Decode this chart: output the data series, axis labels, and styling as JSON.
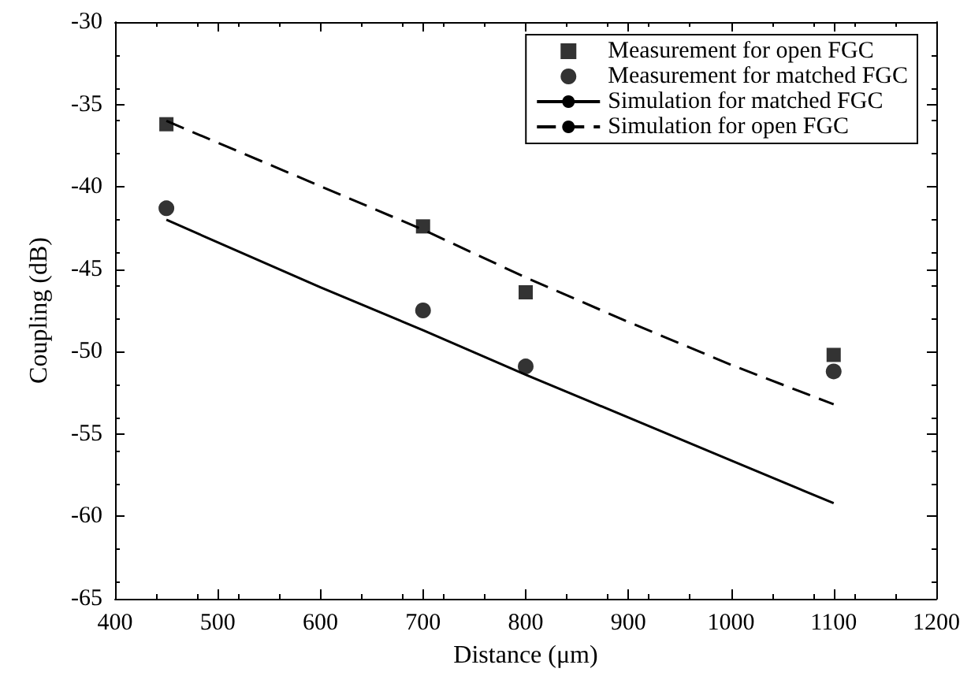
{
  "chart_data": {
    "type": "scatter",
    "xlabel": "Distance (μm)",
    "ylabel": "Coupling (dB)",
    "xlim": [
      400,
      1200
    ],
    "xticks": [
      400,
      500,
      600,
      700,
      800,
      900,
      1000,
      1100,
      1200
    ],
    "ylim": [
      -65,
      -30
    ],
    "yticks": [
      -65,
      -60,
      -55,
      -50,
      -45,
      -40,
      -35,
      -30
    ],
    "grid": false,
    "legend": "top right",
    "series": [
      {
        "name": "Measurement for open FGC",
        "marker": "square",
        "color": "#000000",
        "x": [
          450,
          700,
          800,
          1100
        ],
        "values": [
          -36.2,
          -42.4,
          -46.4,
          -50.2
        ]
      },
      {
        "name": "Measurement for matched FGC",
        "marker": "circle",
        "color": "#000000",
        "x": [
          450,
          700,
          800,
          1100
        ],
        "values": [
          -41.3,
          -47.5,
          -50.9,
          -51.2
        ]
      },
      {
        "name": "Simulation for matched FGC",
        "type": "line",
        "line_style": "solid",
        "color": "#000000",
        "x": [
          450,
          600,
          700,
          800,
          900,
          1000,
          1100
        ],
        "values": [
          -42,
          -46.1,
          -48.7,
          -51.4,
          -54,
          -56.6,
          -59.2
        ]
      },
      {
        "name": "Simulation for open FGC",
        "type": "line",
        "line_style": "dashed",
        "color": "#000000",
        "x": [
          450,
          700,
          800,
          900,
          1000,
          1100
        ],
        "values": [
          -36,
          -42.6,
          -45.5,
          -48.2,
          -50.8,
          -53.2
        ]
      }
    ]
  }
}
